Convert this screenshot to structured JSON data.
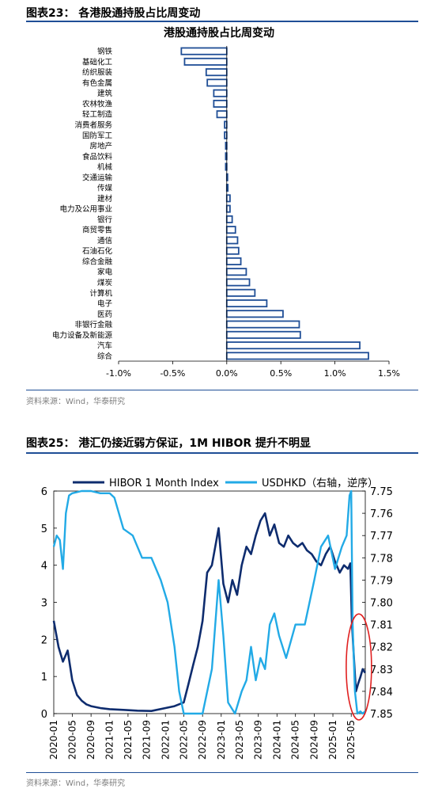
{
  "fig1": {
    "title": "图表23： 各港股通持股占比周变动",
    "source": "资料来源：Wind，华泰研究"
  },
  "fig2": {
    "title": "图表25： 港汇仍接近弱方保证，1M HIBOR 提升不明显",
    "source": "资料来源：Wind，华泰研究"
  },
  "chart_data": [
    {
      "type": "bar",
      "orientation": "horizontal",
      "title": "港股通持股占比周变动",
      "categories": [
        "钢铁",
        "基础化工",
        "纺织服装",
        "有色金属",
        "建筑",
        "农林牧渔",
        "轻工制造",
        "消费者服务",
        "国防军工",
        "房地产",
        "食品饮料",
        "机械",
        "交通运输",
        "传媒",
        "建材",
        "电力及公用事业",
        "银行",
        "商贸零售",
        "通信",
        "石油石化",
        "综合金融",
        "家电",
        "煤炭",
        "计算机",
        "电子",
        "医药",
        "非银行金融",
        "电力设备及新能源",
        "汽车",
        "综合"
      ],
      "values": [
        -0.42,
        -0.39,
        -0.19,
        -0.18,
        -0.12,
        -0.12,
        -0.09,
        -0.02,
        -0.02,
        -0.01,
        -0.01,
        -0.01,
        0.0,
        0.01,
        0.03,
        0.03,
        0.05,
        0.08,
        0.1,
        0.11,
        0.13,
        0.18,
        0.21,
        0.26,
        0.37,
        0.52,
        0.67,
        0.68,
        1.23,
        1.31
      ],
      "xlim": [
        -1.0,
        1.5
      ],
      "xticks": [
        "-1.0%",
        "-0.5%",
        "0.0%",
        "0.5%",
        "1.0%",
        "1.5%"
      ],
      "bar_color": "#1f4e96"
    },
    {
      "type": "line",
      "x": [
        "2020-01",
        "2020-05",
        "2020-09",
        "2021-01",
        "2021-05",
        "2021-09",
        "2022-01",
        "2022-05",
        "2022-09",
        "2023-01",
        "2023-05",
        "2023-09",
        "2024-01",
        "2024-05",
        "2024-09",
        "2025-01",
        "2025-05"
      ],
      "xticks": [
        "2020-01",
        "2020-05",
        "2020-09",
        "2021-01",
        "2021-05",
        "2021-09",
        "2022-01",
        "2022-05",
        "2022-09",
        "2023-01",
        "2023-05",
        "2023-09",
        "2024-01",
        "2024-05",
        "2024-09",
        "2025-01",
        "2025-05"
      ],
      "ylim": [
        0,
        6
      ],
      "yticks": [
        "0",
        "1",
        "2",
        "3",
        "4",
        "5",
        "6"
      ],
      "y2lim": [
        7.75,
        7.85
      ],
      "y2_reversed": true,
      "y2ticks": [
        "7.75",
        "7.76",
        "7.77",
        "7.78",
        "7.79",
        "7.80",
        "7.81",
        "7.82",
        "7.83",
        "7.84",
        "7.85"
      ],
      "legend_position": "top",
      "series": [
        {
          "name": "HIBOR 1 Month Index",
          "axis": "left",
          "color": "#0e2c6e",
          "points": [
            [
              "2020-01-01",
              2.5
            ],
            [
              "2020-02-01",
              1.8
            ],
            [
              "2020-03-01",
              1.4
            ],
            [
              "2020-04-01",
              1.7
            ],
            [
              "2020-05-01",
              0.9
            ],
            [
              "2020-06-01",
              0.5
            ],
            [
              "2020-07-01",
              0.35
            ],
            [
              "2020-08-01",
              0.25
            ],
            [
              "2020-09-01",
              0.2
            ],
            [
              "2020-11-01",
              0.15
            ],
            [
              "2021-01-01",
              0.12
            ],
            [
              "2021-04-01",
              0.1
            ],
            [
              "2021-07-01",
              0.08
            ],
            [
              "2021-10-01",
              0.07
            ],
            [
              "2022-01-01",
              0.15
            ],
            [
              "2022-03-01",
              0.2
            ],
            [
              "2022-05-01",
              0.3
            ],
            [
              "2022-06-01",
              0.8
            ],
            [
              "2022-07-01",
              1.3
            ],
            [
              "2022-08-01",
              1.8
            ],
            [
              "2022-09-01",
              2.5
            ],
            [
              "2022-10-01",
              3.8
            ],
            [
              "2022-11-01",
              4.0
            ],
            [
              "2022-12-15",
              5.0
            ],
            [
              "2023-01-15",
              3.5
            ],
            [
              "2023-02-15",
              3.0
            ],
            [
              "2023-03-15",
              3.6
            ],
            [
              "2023-04-15",
              3.2
            ],
            [
              "2023-05-15",
              4.0
            ],
            [
              "2023-06-15",
              4.5
            ],
            [
              "2023-07-15",
              4.3
            ],
            [
              "2023-08-15",
              4.8
            ],
            [
              "2023-09-15",
              5.2
            ],
            [
              "2023-10-15",
              5.4
            ],
            [
              "2023-11-15",
              4.8
            ],
            [
              "2023-12-15",
              5.1
            ],
            [
              "2024-01-15",
              4.6
            ],
            [
              "2024-02-15",
              4.5
            ],
            [
              "2024-03-15",
              4.8
            ],
            [
              "2024-04-15",
              4.6
            ],
            [
              "2024-05-15",
              4.5
            ],
            [
              "2024-06-15",
              4.6
            ],
            [
              "2024-07-15",
              4.4
            ],
            [
              "2024-08-15",
              4.3
            ],
            [
              "2024-09-15",
              4.1
            ],
            [
              "2024-10-15",
              4.0
            ],
            [
              "2024-11-15",
              4.3
            ],
            [
              "2024-12-15",
              4.5
            ],
            [
              "2025-01-15",
              4.1
            ],
            [
              "2025-02-15",
              3.8
            ],
            [
              "2025-03-15",
              4.0
            ],
            [
              "2025-04-10",
              3.9
            ],
            [
              "2025-04-25",
              4.05
            ],
            [
              "2025-05-05",
              2.5
            ],
            [
              "2025-05-20",
              1.4
            ],
            [
              "2025-06-01",
              0.6
            ],
            [
              "2025-06-15",
              0.8
            ],
            [
              "2025-07-01",
              1.0
            ],
            [
              "2025-07-15",
              1.2
            ],
            [
              "2025-07-31",
              1.1
            ]
          ]
        },
        {
          "name": "USDHKD（右轴，逆序）",
          "axis": "right",
          "color": "#22aae6",
          "points": [
            [
              "2020-01-01",
              7.775
            ],
            [
              "2020-01-20",
              7.77
            ],
            [
              "2020-02-10",
              7.772
            ],
            [
              "2020-03-01",
              7.785
            ],
            [
              "2020-03-20",
              7.76
            ],
            [
              "2020-04-10",
              7.752
            ],
            [
              "2020-05-01",
              7.751
            ],
            [
              "2020-07-01",
              7.75
            ],
            [
              "2020-09-01",
              7.75
            ],
            [
              "2020-11-01",
              7.751
            ],
            [
              "2021-01-01",
              7.751
            ],
            [
              "2021-02-01",
              7.753
            ],
            [
              "2021-04-01",
              7.767
            ],
            [
              "2021-06-01",
              7.77
            ],
            [
              "2021-08-01",
              7.78
            ],
            [
              "2021-10-01",
              7.78
            ],
            [
              "2021-12-01",
              7.79
            ],
            [
              "2022-01-15",
              7.8
            ],
            [
              "2022-03-01",
              7.82
            ],
            [
              "2022-04-01",
              7.84
            ],
            [
              "2022-05-01",
              7.85
            ],
            [
              "2022-07-01",
              7.85
            ],
            [
              "2022-09-01",
              7.85
            ],
            [
              "2022-11-01",
              7.83
            ],
            [
              "2022-12-15",
              7.79
            ],
            [
              "2023-01-15",
              7.815
            ],
            [
              "2023-02-15",
              7.845
            ],
            [
              "2023-04-01",
              7.85
            ],
            [
              "2023-05-15",
              7.84
            ],
            [
              "2023-06-15",
              7.835
            ],
            [
              "2023-07-15",
              7.82
            ],
            [
              "2023-08-15",
              7.835
            ],
            [
              "2023-09-15",
              7.825
            ],
            [
              "2023-10-15",
              7.83
            ],
            [
              "2023-11-15",
              7.81
            ],
            [
              "2023-12-15",
              7.805
            ],
            [
              "2024-01-15",
              7.815
            ],
            [
              "2024-03-01",
              7.825
            ],
            [
              "2024-05-01",
              7.81
            ],
            [
              "2024-07-01",
              7.81
            ],
            [
              "2024-09-01",
              7.79
            ],
            [
              "2024-10-15",
              7.775
            ],
            [
              "2024-12-01",
              7.77
            ],
            [
              "2025-01-15",
              7.785
            ],
            [
              "2025-03-01",
              7.775
            ],
            [
              "2025-04-01",
              7.77
            ],
            [
              "2025-04-20",
              7.752
            ],
            [
              "2025-05-01",
              7.75
            ],
            [
              "2025-05-10",
              7.81
            ],
            [
              "2025-05-25",
              7.84
            ],
            [
              "2025-06-10",
              7.85
            ],
            [
              "2025-06-30",
              7.849
            ],
            [
              "2025-07-15",
              7.85
            ],
            [
              "2025-07-31",
              7.849
            ]
          ]
        }
      ],
      "highlight_circle_color": "#e02020"
    }
  ]
}
